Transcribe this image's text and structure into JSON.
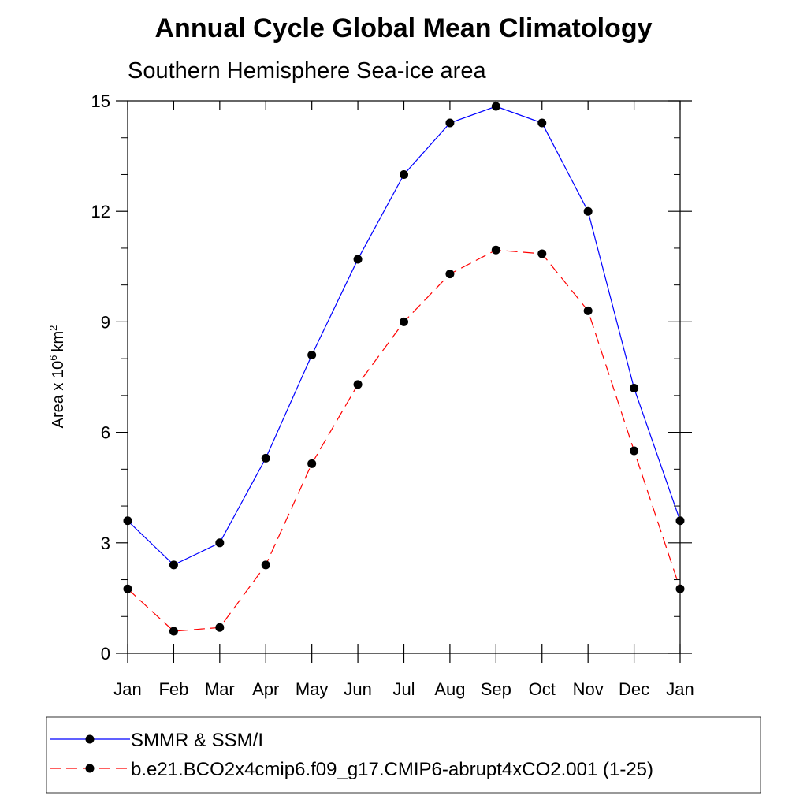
{
  "chart_data": {
    "type": "line",
    "title": "Annual Cycle Global Mean Climatology",
    "subtitle": "Southern Hemisphere Sea-ice area",
    "ylabel": "Area x 10",
    "ylabel_exponent": "6",
    "ylabel_unit": "km",
    "ylabel_unit_exponent": "2",
    "ylim": [
      0,
      15
    ],
    "y_ticks": [
      0,
      3,
      6,
      9,
      12,
      15
    ],
    "categories": [
      "Jan",
      "Feb",
      "Mar",
      "Apr",
      "May",
      "Jun",
      "Jul",
      "Aug",
      "Sep",
      "Oct",
      "Nov",
      "Dec",
      "Jan"
    ],
    "series": [
      {
        "name": "SMMR & SSM/I",
        "color": "#0000ff",
        "dashed": false,
        "values": [
          3.6,
          2.4,
          3.0,
          5.3,
          8.1,
          10.7,
          13.0,
          14.4,
          14.85,
          14.4,
          12.0,
          7.2,
          3.6
        ]
      },
      {
        "name": "b.e21.BCO2x4cmip6.f09_g17.CMIP6-abrupt4xCO2.001 (1-25)",
        "color": "#ff0000",
        "dashed": true,
        "values": [
          1.75,
          0.6,
          0.7,
          2.4,
          5.15,
          7.3,
          9.0,
          10.3,
          10.95,
          10.85,
          9.3,
          5.5,
          1.75
        ]
      }
    ],
    "legend_position": "bottom",
    "grid": false
  }
}
